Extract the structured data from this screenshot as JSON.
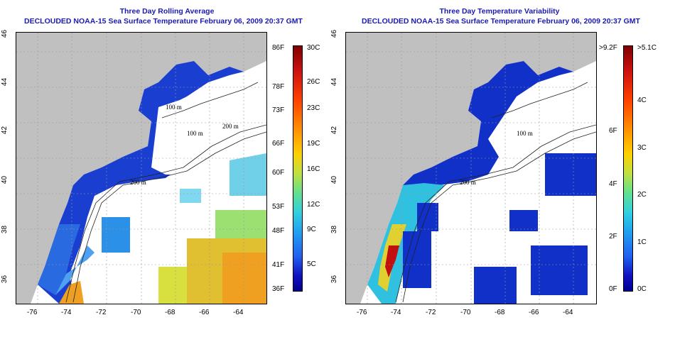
{
  "left_panel": {
    "title_line1": "Three Day Rolling Average",
    "title_line2": "DECLOUDED NOAA-15 Sea Surface Temperature February 06, 2009 20:37 GMT",
    "colorbar_f": [
      "86F",
      "78F",
      "73F",
      "66F",
      "60F",
      "53F",
      "48F",
      "41F",
      "36F"
    ],
    "colorbar_c": [
      "30C",
      "26C",
      "23C",
      "19C",
      "16C",
      "12C",
      "9C",
      "5C"
    ]
  },
  "right_panel": {
    "title_line1": "Three Day Temperature Variability",
    "title_line2": "DECLOUDED NOAA-15 Sea Surface Temperature February 06, 2009 20:37 GMT",
    "colorbar_f": [
      ">9.2F",
      "6F",
      "4F",
      "2F",
      "0F"
    ],
    "colorbar_c": [
      ">5.1C",
      "4C",
      "3C",
      "2C",
      "1C",
      "0C"
    ]
  },
  "axes": {
    "lat_ticks": [
      "46",
      "44",
      "42",
      "40",
      "38",
      "36"
    ],
    "lon_ticks": [
      "-76",
      "-74",
      "-72",
      "-70",
      "-68",
      "-66",
      "-64"
    ]
  },
  "contour_labels": [
    "100 m",
    "100 m",
    "100 m",
    "200 m",
    "200 m",
    "200 m"
  ],
  "colors": {
    "land": "#c0c0c0",
    "title": "#1a1ab4",
    "grid": "#999999"
  }
}
